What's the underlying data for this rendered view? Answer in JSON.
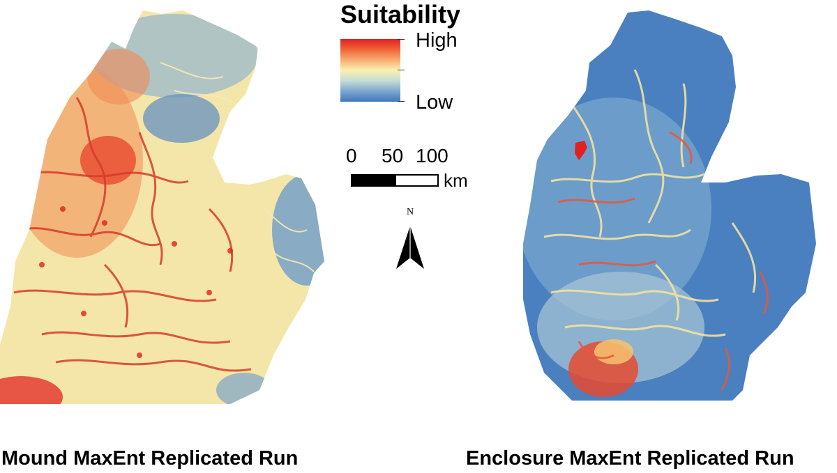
{
  "legend": {
    "title": "Suitability",
    "high_label": "High",
    "low_label": "Low",
    "ramp_colors": [
      "#e0211f",
      "#f2693c",
      "#f8b073",
      "#fbf0b2",
      "#c6ddd5",
      "#7da7cf",
      "#3f78bb"
    ]
  },
  "scale_bar": {
    "ticks": [
      "0",
      "50",
      "100"
    ],
    "unit": "km"
  },
  "north_arrow": {
    "label": "N"
  },
  "maps": {
    "left": {
      "caption": "Mound MaxEnt Replicated Run",
      "dominant_color": "#f4e9ac"
    },
    "right": {
      "caption": "Enclosure MaxEnt Replicated Run",
      "dominant_color": "#3f78bb"
    }
  }
}
